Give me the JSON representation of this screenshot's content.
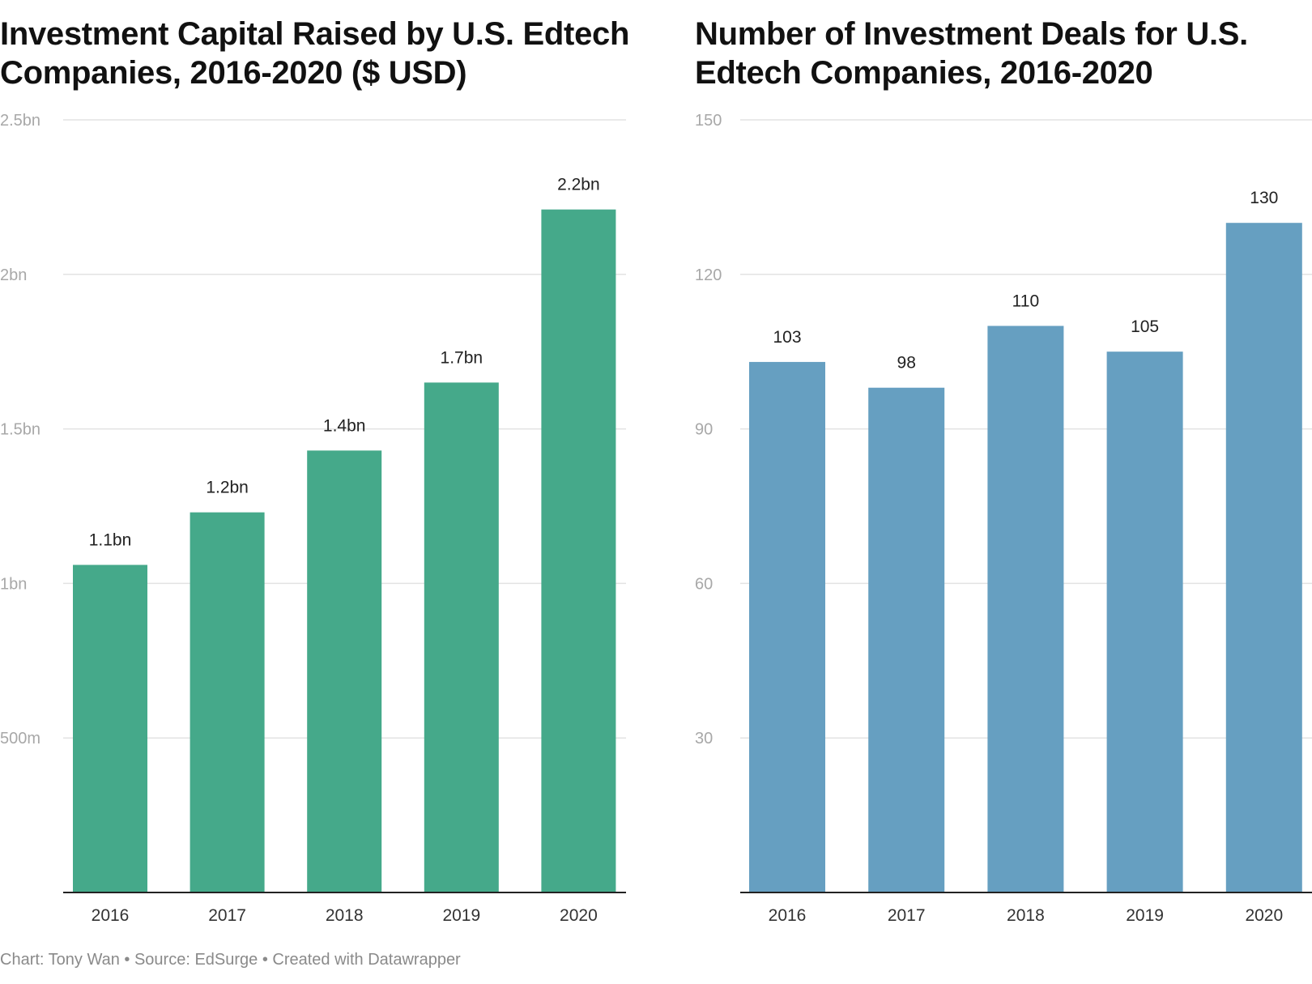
{
  "footer": "Chart: Tony Wan • Source: EdSurge • Created with Datawrapper",
  "chart_data": [
    {
      "type": "bar",
      "title": "Investment Capital Raised by U.S. Edtech Companies, 2016-2020 ($ USD)",
      "categories": [
        "2016",
        "2017",
        "2018",
        "2019",
        "2020"
      ],
      "values": [
        1.06,
        1.23,
        1.43,
        1.65,
        2.21
      ],
      "value_unit": "bn USD",
      "data_labels": [
        "1.1bn",
        "1.2bn",
        "1.4bn",
        "1.7bn",
        "2.2bn"
      ],
      "ylim": [
        0,
        2.5
      ],
      "yticks": [
        0.5,
        1,
        1.5,
        2,
        2.5
      ],
      "ytick_labels": [
        "500m",
        "1bn",
        "1.5bn",
        "2bn",
        "2.5bn"
      ],
      "grid": true,
      "color": "#45a98a"
    },
    {
      "type": "bar",
      "title": "Number of Investment Deals for U.S. Edtech Companies, 2016-2020",
      "categories": [
        "2016",
        "2017",
        "2018",
        "2019",
        "2020"
      ],
      "values": [
        103,
        98,
        110,
        105,
        130
      ],
      "data_labels": [
        "103",
        "98",
        "110",
        "105",
        "130"
      ],
      "ylim": [
        0,
        150
      ],
      "yticks": [
        30,
        60,
        90,
        120,
        150
      ],
      "ytick_labels": [
        "30",
        "60",
        "90",
        "120",
        "150"
      ],
      "grid": true,
      "color": "#669fc1"
    }
  ]
}
